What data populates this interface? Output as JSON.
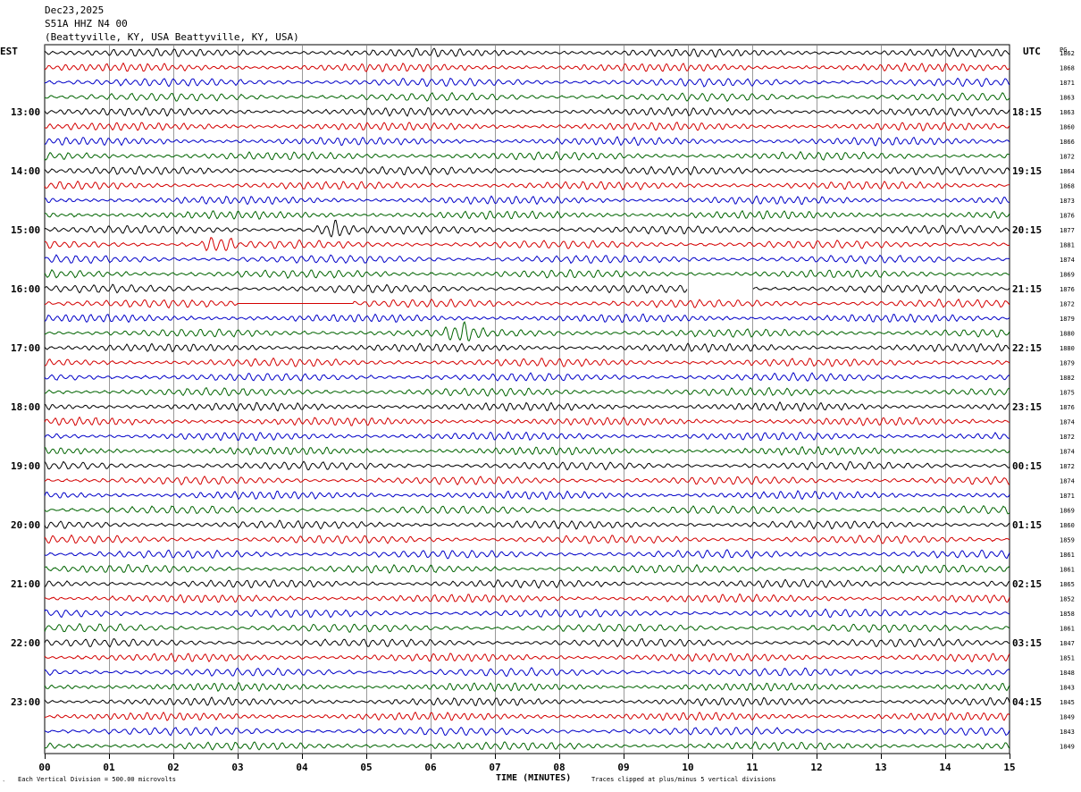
{
  "header": {
    "date": "Dec23,2025",
    "station": "S51A HHZ N4 00",
    "location": "(Beattyville, KY, USA Beattyville, KY, USA)"
  },
  "axis_labels": {
    "left_tz": "EST",
    "right_tz": "UTC",
    "right_col": "PG",
    "xlabel": "TIME (MINUTES)"
  },
  "footer": {
    "scale": "Each Vertical Division =  500.00 microvolts",
    "clip": "Traces clipped at plus/minus 5 vertical divisions",
    "mark": "‵"
  },
  "colors": {
    "trace_cycle": [
      "#000000",
      "#d40000",
      "#0000c8",
      "#006400"
    ],
    "grid": "#808080"
  },
  "chart_data": {
    "type": "helicorder",
    "x_ticks": [
      "00",
      "01",
      "02",
      "03",
      "04",
      "05",
      "06",
      "07",
      "08",
      "09",
      "10",
      "11",
      "12",
      "13",
      "14",
      "15"
    ],
    "xlim": [
      0,
      15
    ],
    "grid": true,
    "traces_per_hour": 4,
    "minutes_per_trace": 15,
    "est_hour_labels": [
      "13:00",
      "14:00",
      "15:00",
      "16:00",
      "17:00",
      "18:00",
      "19:00",
      "20:00",
      "21:00",
      "22:00",
      "23:00"
    ],
    "utc_hour_labels": [
      "18:15",
      "19:15",
      "20:15",
      "21:15",
      "22:15",
      "23:15",
      "00:15",
      "01:15",
      "02:15",
      "03:15",
      "04:15"
    ],
    "pg_values": [
      "1862",
      "1868",
      "1871",
      "1863",
      "1863",
      "1860",
      "1866",
      "1872",
      "1864",
      "1868",
      "1873",
      "1876",
      "1877",
      "1881",
      "1874",
      "1869",
      "1876",
      "1872",
      "1879",
      "1880",
      "1880",
      "1879",
      "1882",
      "1875",
      "1876",
      "1874",
      "1872",
      "1874",
      "1872",
      "1874",
      "1871",
      "1869",
      "1860",
      "1859",
      "1861",
      "1861",
      "1865",
      "1852",
      "1858",
      "1861",
      "1847",
      "1851",
      "1848",
      "1843",
      "1845",
      "1849",
      "1843",
      "1849"
    ],
    "events": [
      {
        "trace_index": 12,
        "minute": 4.5,
        "note": "burst"
      },
      {
        "trace_index": 13,
        "minute": 2.7,
        "note": "burst"
      },
      {
        "trace_index": 19,
        "minute": 6.5,
        "note": "burst"
      }
    ],
    "gaps": [
      {
        "trace_index": 16,
        "from_minute": 10.0,
        "to_minute": 11.0
      },
      {
        "trace_index": 17,
        "from_minute": 3.0,
        "to_minute": 4.8
      }
    ]
  }
}
